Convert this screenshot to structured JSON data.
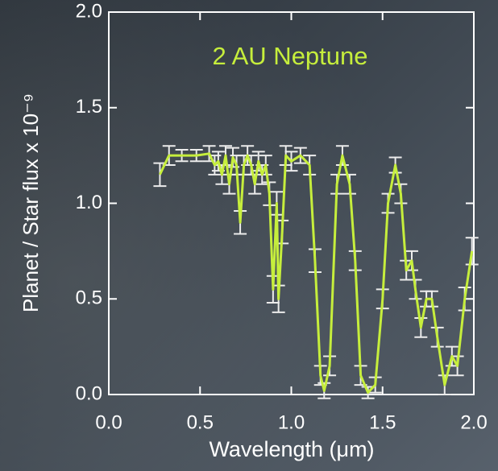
{
  "chart_data": {
    "type": "line",
    "title": "2 AU Neptune",
    "xlabel": "Wavelength (μm)",
    "ylabel": "Planet / Star flux x 10⁻⁹",
    "x": [
      0.28,
      0.33,
      0.4,
      0.48,
      0.55,
      0.58,
      0.6,
      0.62,
      0.64,
      0.66,
      0.68,
      0.7,
      0.72,
      0.74,
      0.76,
      0.78,
      0.8,
      0.82,
      0.84,
      0.86,
      0.88,
      0.9,
      0.92,
      0.93,
      0.95,
      0.97,
      1.0,
      1.05,
      1.1,
      1.13,
      1.16,
      1.18,
      1.21,
      1.25,
      1.28,
      1.32,
      1.35,
      1.38,
      1.42,
      1.46,
      1.5,
      1.53,
      1.57,
      1.6,
      1.63,
      1.66,
      1.68,
      1.71,
      1.74,
      1.77,
      1.8,
      1.84,
      1.88,
      1.91,
      1.95,
      1.99
    ],
    "values": [
      1.15,
      1.25,
      1.25,
      1.25,
      1.26,
      1.2,
      1.22,
      1.15,
      1.25,
      1.1,
      1.24,
      1.2,
      0.9,
      1.2,
      1.25,
      1.2,
      1.1,
      1.22,
      1.15,
      1.2,
      1.05,
      0.55,
      1.0,
      0.5,
      0.85,
      1.25,
      1.22,
      1.25,
      1.2,
      0.7,
      0.1,
      0.02,
      0.15,
      1.1,
      1.25,
      1.1,
      0.7,
      0.1,
      0.01,
      0.05,
      0.5,
      1.0,
      1.2,
      1.05,
      0.65,
      0.7,
      0.55,
      0.35,
      0.5,
      0.5,
      0.3,
      0.05,
      0.2,
      0.15,
      0.5,
      0.75
    ],
    "errors": [
      0.06,
      0.05,
      0.03,
      0.03,
      0.04,
      0.05,
      0.05,
      0.05,
      0.05,
      0.05,
      0.05,
      0.05,
      0.06,
      0.05,
      0.05,
      0.05,
      0.05,
      0.05,
      0.05,
      0.05,
      0.06,
      0.07,
      0.06,
      0.07,
      0.06,
      0.05,
      0.05,
      0.04,
      0.05,
      0.06,
      0.05,
      0.04,
      0.05,
      0.05,
      0.05,
      0.05,
      0.05,
      0.05,
      0.03,
      0.04,
      0.05,
      0.05,
      0.04,
      0.05,
      0.05,
      0.05,
      0.05,
      0.05,
      0.04,
      0.04,
      0.05,
      0.05,
      0.05,
      0.05,
      0.06,
      0.07
    ],
    "color": "#c6ee3c",
    "error_color": "#ececec",
    "xlim": [
      0,
      2
    ],
    "ylim": [
      0,
      2
    ],
    "xticks": [
      {
        "value": 0,
        "label": "0.0"
      },
      {
        "value": 0.5,
        "label": "0.5"
      },
      {
        "value": 1,
        "label": "1.0"
      },
      {
        "value": 1.5,
        "label": "1.5"
      },
      {
        "value": 2,
        "label": "2.0"
      }
    ],
    "yticks": [
      {
        "value": 0,
        "label": "0.0"
      },
      {
        "value": 0.5,
        "label": "0.5"
      },
      {
        "value": 1,
        "label": "1.0"
      },
      {
        "value": 1.5,
        "label": "1.5"
      },
      {
        "value": 2,
        "label": "2.0"
      }
    ]
  }
}
